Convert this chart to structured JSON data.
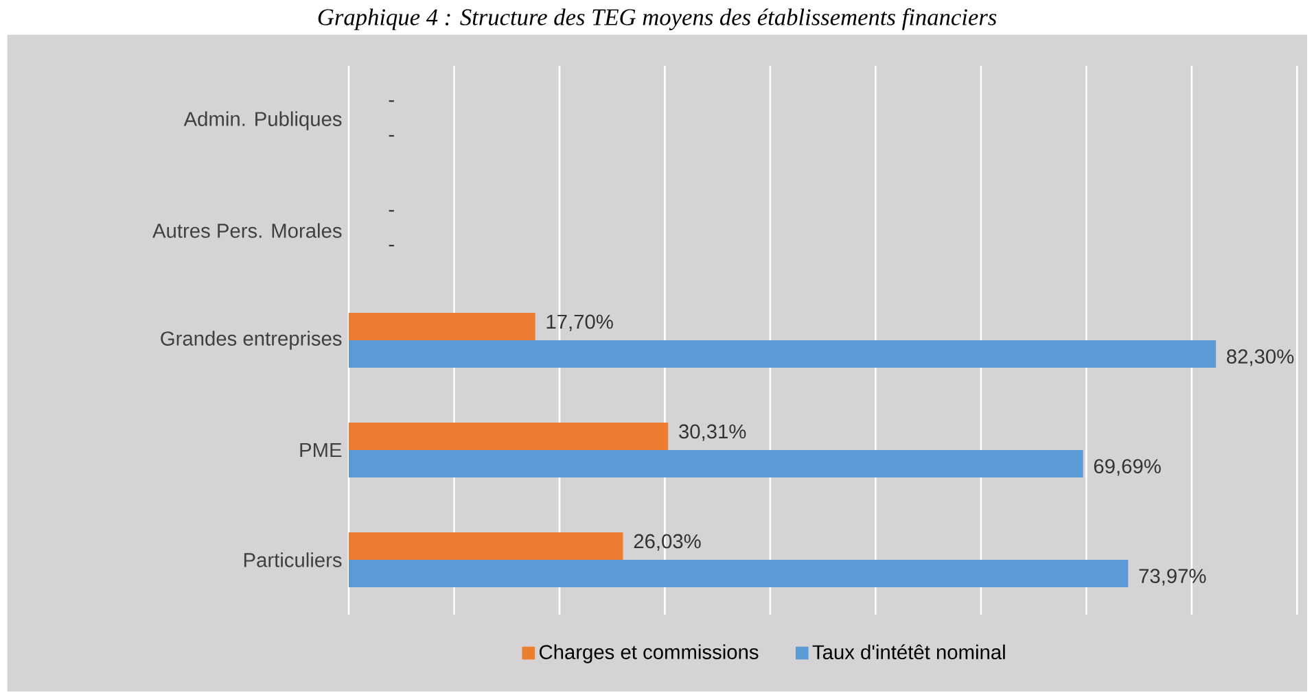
{
  "chart_data": {
    "type": "bar",
    "orientation": "horizontal",
    "title": "*Graphique 4 : Structure des TEG moyens des établissements financiers*",
    "categories": [
      "Admin. Publiques",
      "Autres Pers. Morales",
      "Grandes entreprises",
      "PME",
      "Particuliers"
    ],
    "series": [
      {
        "name": "Charges et commissions",
        "color": "#ed7d31",
        "values": [
          null,
          null,
          17.7,
          30.31,
          26.03
        ],
        "value_labels": [
          "-",
          "-",
          "17,70%",
          "30,31%",
          "26,03%"
        ]
      },
      {
        "name": "Taux d'intétêt nominal",
        "color": "#5b9bd5",
        "values": [
          null,
          null,
          82.3,
          69.69,
          73.97
        ],
        "value_labels": [
          "-",
          "-",
          "82,30%",
          "69,69%",
          "73,97%"
        ]
      }
    ],
    "xlim": [
      0,
      90
    ],
    "xticks": [
      {
        "value": 0,
        "label": null
      },
      {
        "value": 10,
        "label": null
      },
      {
        "value": 20,
        "label": null
      },
      {
        "value": 30,
        "label": null
      },
      {
        "value": 40,
        "label": null
      },
      {
        "value": 50,
        "label": null
      },
      {
        "value": 60,
        "label": null
      },
      {
        "value": 70,
        "label": null
      },
      {
        "value": 80,
        "label": null
      },
      {
        "value": 90,
        "label": null
      }
    ],
    "grid": "x",
    "legend": "bottom",
    "tick_labels": "y"
  }
}
